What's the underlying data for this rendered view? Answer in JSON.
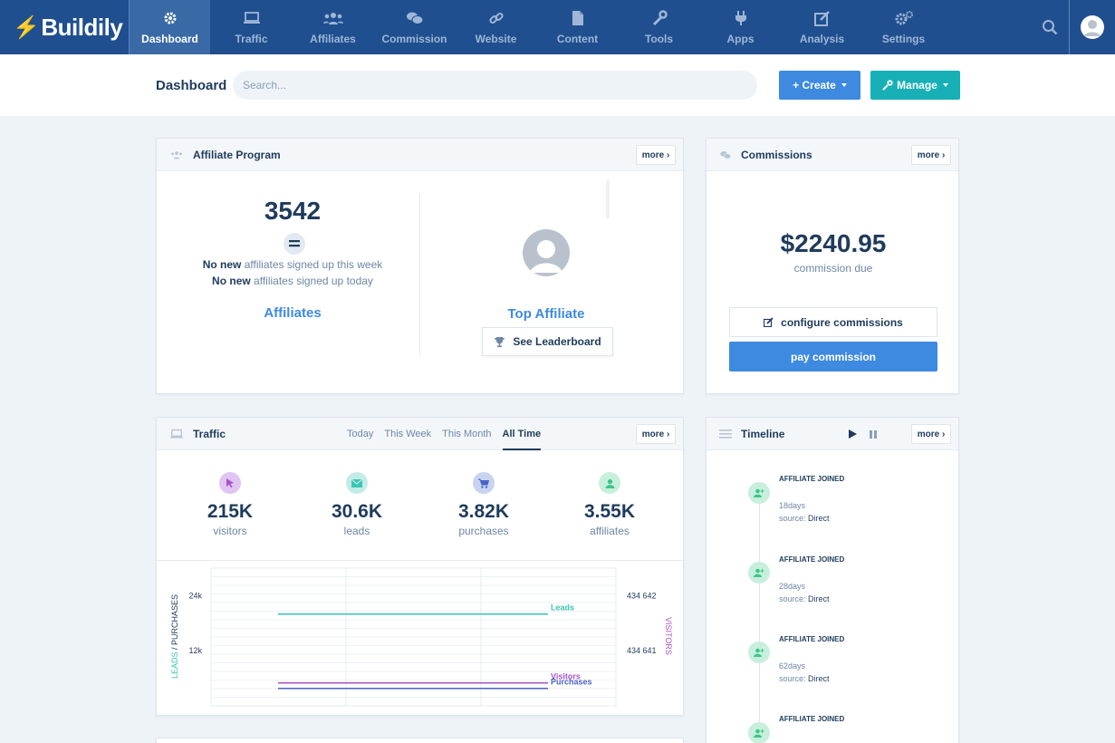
{
  "brand": {
    "name": "Buildily"
  },
  "nav": {
    "items": [
      {
        "label": "Dashboard",
        "icon": "gear-icon",
        "active": true
      },
      {
        "label": "Traffic",
        "icon": "laptop-icon"
      },
      {
        "label": "Affiliates",
        "icon": "users-icon"
      },
      {
        "label": "Commission",
        "icon": "coins-icon"
      },
      {
        "label": "Website",
        "icon": "link-icon"
      },
      {
        "label": "Content",
        "icon": "file-icon"
      },
      {
        "label": "Tools",
        "icon": "wrench-icon"
      },
      {
        "label": "Apps",
        "icon": "plug-icon"
      },
      {
        "label": "Analysis",
        "icon": "edit-icon"
      },
      {
        "label": "Settings",
        "icon": "gears-icon"
      }
    ]
  },
  "subbar": {
    "title": "Dashboard",
    "search_placeholder": "Search...",
    "create_label": "+ Create",
    "manage_label": "Manage"
  },
  "affiliate_program": {
    "title": "Affiliate Program",
    "more": "more ›",
    "count": "3542",
    "line1_bold": "No new",
    "line1_rest": " affiliates signed up this week",
    "line2_bold": "No new",
    "line2_rest": " affiliates signed up today",
    "link": "Affiliates",
    "top_affiliate": "Top Affiliate",
    "leaderboard_button": "See Leaderboard"
  },
  "commissions": {
    "title": "Commissions",
    "more": "more ›",
    "amount": "$2240.95",
    "amount_label": "commission due",
    "configure_button": "configure commissions",
    "pay_button": "pay commission"
  },
  "traffic": {
    "title": "Traffic",
    "more": "more ›",
    "tabs": [
      "Today",
      "This Week",
      "This Month",
      "All Time"
    ],
    "active_tab": "All Time",
    "stats": [
      {
        "value": "215K",
        "label": "visitors",
        "icon": "cursor-icon",
        "color": "#e0c4f2",
        "icon_color": "#a855c8"
      },
      {
        "value": "30.6K",
        "label": "leads",
        "icon": "envelope-icon",
        "color": "#c4ece6",
        "icon_color": "#3cc6b3"
      },
      {
        "value": "3.82K",
        "label": "purchases",
        "icon": "cart-icon",
        "color": "#c9d3f0",
        "icon_color": "#4a62c8"
      },
      {
        "value": "3.55K",
        "label": "affiliates",
        "icon": "user-icon",
        "color": "#c7efdc",
        "icon_color": "#3cc68a"
      }
    ]
  },
  "chart_data": {
    "type": "line",
    "ylabel_left_1": "LEADS",
    "ylabel_left_sep": " / ",
    "ylabel_left_2": "PURCHASES",
    "ylabel_right": "VISITORS",
    "left_ticks": [
      "24k",
      "12k"
    ],
    "right_ticks": [
      "434 642",
      "434 641"
    ],
    "series": [
      {
        "name": "Leads",
        "color": "#3cc6b3",
        "axis": "left",
        "values": [
          20000,
          20000,
          20000
        ]
      },
      {
        "name": "Visitors",
        "color": "#a855c8",
        "axis": "right",
        "values": [
          434641,
          434641,
          434641
        ]
      },
      {
        "name": "Purchases",
        "color": "#4a62c8",
        "axis": "left",
        "values": [
          3800,
          3800,
          3800
        ]
      }
    ],
    "grid": true
  },
  "timeline": {
    "title": "Timeline",
    "more": "more ›",
    "events": [
      {
        "title": "AFFILIATE JOINED",
        "time": "18days",
        "source_label": "source:",
        "source": "Direct"
      },
      {
        "title": "AFFILIATE JOINED",
        "time": "28days",
        "source_label": "source:",
        "source": "Direct"
      },
      {
        "title": "AFFILIATE JOINED",
        "time": "62days",
        "source_label": "source:",
        "source": "Direct"
      },
      {
        "title": "AFFILIATE JOINED",
        "time": "",
        "source_label": "",
        "source": ""
      }
    ]
  }
}
